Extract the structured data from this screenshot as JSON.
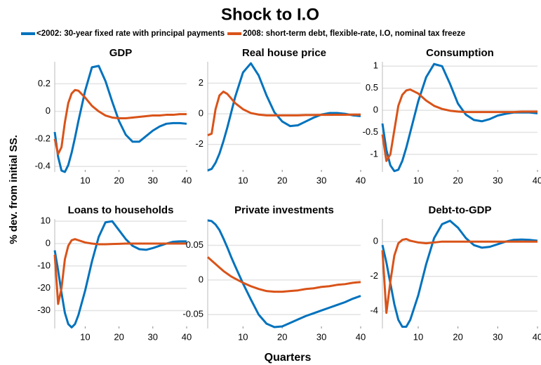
{
  "title": "Shock to I.O",
  "ylabel": "% dev. from initial SS.",
  "xlabel": "Quarters",
  "chart_data": [
    {
      "type": "line",
      "title": "GDP",
      "x": [
        1,
        2,
        3,
        4,
        5,
        6,
        7,
        8,
        10,
        12,
        14,
        16,
        18,
        20,
        22,
        24,
        26,
        28,
        30,
        32,
        34,
        36,
        38,
        40
      ],
      "xlim": [
        1,
        40
      ],
      "xticks": [
        10,
        20,
        30,
        40
      ],
      "ylim": [
        -0.44,
        0.36
      ],
      "yticks": [
        -0.4,
        -0.2,
        0,
        0.2
      ],
      "grid": true,
      "series": [
        {
          "name": "<2002: 30-year fixed rate with principal payments",
          "color": "#0072BD",
          "values": [
            -0.15,
            -0.33,
            -0.43,
            -0.44,
            -0.39,
            -0.3,
            -0.19,
            -0.07,
            0.15,
            0.32,
            0.33,
            0.22,
            0.07,
            -0.07,
            -0.17,
            -0.22,
            -0.22,
            -0.18,
            -0.14,
            -0.11,
            -0.09,
            -0.085,
            -0.085,
            -0.09
          ]
        },
        {
          "name": "2008: short-term debt, flexible-rate, I.O, nominal tax freeze",
          "color": "#D95319",
          "values": [
            -0.2,
            -0.31,
            -0.26,
            -0.08,
            0.06,
            0.13,
            0.155,
            0.15,
            0.1,
            0.04,
            0.0,
            -0.03,
            -0.045,
            -0.05,
            -0.05,
            -0.045,
            -0.04,
            -0.035,
            -0.03,
            -0.03,
            -0.025,
            -0.025,
            -0.02,
            -0.02
          ]
        }
      ]
    },
    {
      "type": "line",
      "title": "Real house price",
      "x": [
        1,
        2,
        3,
        4,
        5,
        6,
        7,
        8,
        10,
        12,
        14,
        16,
        18,
        20,
        22,
        24,
        26,
        28,
        30,
        32,
        34,
        36,
        38,
        40
      ],
      "xlim": [
        1,
        40
      ],
      "xticks": [
        10,
        20,
        30,
        40
      ],
      "ylim": [
        -3.8,
        3.4
      ],
      "yticks": [
        -2,
        0,
        2
      ],
      "grid": true,
      "series": [
        {
          "name": "<2002: 30-year fixed rate with principal payments",
          "color": "#0072BD",
          "values": [
            -3.7,
            -3.6,
            -3.2,
            -2.6,
            -1.8,
            -0.9,
            0.1,
            1.1,
            2.7,
            3.3,
            2.5,
            1.2,
            0.1,
            -0.5,
            -0.8,
            -0.75,
            -0.5,
            -0.25,
            -0.05,
            0.05,
            0.05,
            0.0,
            -0.1,
            -0.15
          ]
        },
        {
          "name": "2008: short-term debt, flexible-rate, I.O, nominal tax freeze",
          "color": "#D95319",
          "values": [
            -1.4,
            -1.3,
            0.3,
            1.2,
            1.45,
            1.3,
            1.0,
            0.7,
            0.3,
            0.05,
            -0.05,
            -0.1,
            -0.1,
            -0.1,
            -0.1,
            -0.1,
            -0.08,
            -0.08,
            -0.07,
            -0.07,
            -0.06,
            -0.06,
            -0.05,
            -0.05
          ]
        }
      ]
    },
    {
      "type": "line",
      "title": "Consumption",
      "x": [
        1,
        2,
        3,
        4,
        5,
        6,
        7,
        8,
        10,
        12,
        14,
        16,
        18,
        20,
        22,
        24,
        26,
        28,
        30,
        32,
        34,
        36,
        38,
        40
      ],
      "xlim": [
        1,
        40
      ],
      "xticks": [
        10,
        20,
        30,
        40
      ],
      "ylim": [
        -1.4,
        1.1
      ],
      "yticks": [
        -1,
        -0.5,
        0,
        0.5,
        1
      ],
      "grid": true,
      "series": [
        {
          "name": "<2002: 30-year fixed rate with principal payments",
          "color": "#0072BD",
          "values": [
            -0.3,
            -0.9,
            -1.25,
            -1.38,
            -1.35,
            -1.15,
            -0.85,
            -0.5,
            0.2,
            0.75,
            1.05,
            1.0,
            0.6,
            0.15,
            -0.1,
            -0.22,
            -0.25,
            -0.2,
            -0.12,
            -0.08,
            -0.05,
            -0.05,
            -0.05,
            -0.07
          ]
        },
        {
          "name": "2008: short-term debt, flexible-rate, I.O, nominal tax freeze",
          "color": "#D95319",
          "values": [
            -0.55,
            -1.15,
            -1.0,
            -0.45,
            0.1,
            0.35,
            0.45,
            0.47,
            0.38,
            0.22,
            0.1,
            0.03,
            -0.01,
            -0.03,
            -0.04,
            -0.04,
            -0.04,
            -0.04,
            -0.04,
            -0.04,
            -0.04,
            -0.03,
            -0.03,
            -0.03
          ]
        }
      ]
    },
    {
      "type": "line",
      "title": "Loans to households",
      "x": [
        1,
        2,
        3,
        4,
        5,
        6,
        7,
        8,
        10,
        12,
        14,
        16,
        18,
        20,
        22,
        24,
        26,
        28,
        30,
        32,
        34,
        36,
        38,
        40
      ],
      "xlim": [
        1,
        40
      ],
      "xticks": [
        10,
        20,
        30,
        40
      ],
      "ylim": [
        -38,
        11
      ],
      "yticks": [
        -30,
        -20,
        -10,
        0,
        10
      ],
      "grid": true,
      "series": [
        {
          "name": "<2002: 30-year fixed rate with principal payments",
          "color": "#0072BD",
          "values": [
            -3,
            -12,
            -22,
            -31,
            -36,
            -37.5,
            -36,
            -32,
            -21,
            -8,
            3,
            9.5,
            10,
            6,
            2,
            -1,
            -2.5,
            -2.8,
            -2,
            -1,
            0,
            0.8,
            1,
            1
          ]
        },
        {
          "name": "2008: short-term debt, flexible-rate, I.O, nominal tax freeze",
          "color": "#D95319",
          "values": [
            -5,
            -27,
            -20,
            -7,
            -1,
            1.5,
            2,
            1.5,
            0.5,
            0,
            -0.3,
            -0.3,
            -0.2,
            -0.1,
            0,
            0,
            0,
            0,
            0,
            0,
            0,
            0,
            0,
            0
          ]
        }
      ]
    },
    {
      "type": "line",
      "title": "Private investments",
      "x": [
        1,
        2,
        3,
        4,
        5,
        6,
        7,
        8,
        10,
        12,
        14,
        16,
        18,
        20,
        22,
        24,
        26,
        28,
        30,
        32,
        34,
        36,
        38,
        40
      ],
      "xlim": [
        1,
        40
      ],
      "xticks": [
        10,
        20,
        30,
        40
      ],
      "ylim": [
        -0.07,
        0.088
      ],
      "yticks": [
        -0.05,
        0,
        0.05
      ],
      "grid": true,
      "series": [
        {
          "name": "<2002: 30-year fixed rate with principal payments",
          "color": "#0072BD",
          "values": [
            0.086,
            0.085,
            0.08,
            0.072,
            0.06,
            0.047,
            0.033,
            0.02,
            -0.005,
            -0.028,
            -0.05,
            -0.063,
            -0.068,
            -0.067,
            -0.062,
            -0.057,
            -0.052,
            -0.048,
            -0.044,
            -0.04,
            -0.036,
            -0.032,
            -0.027,
            -0.023
          ]
        },
        {
          "name": "2008: short-term debt, flexible-rate, I.O, nominal tax freeze",
          "color": "#D95319",
          "values": [
            0.033,
            0.028,
            0.023,
            0.018,
            0.013,
            0.009,
            0.005,
            0.002,
            -0.004,
            -0.009,
            -0.013,
            -0.016,
            -0.017,
            -0.017,
            -0.016,
            -0.015,
            -0.013,
            -0.012,
            -0.01,
            -0.009,
            -0.007,
            -0.006,
            -0.004,
            -0.003
          ]
        }
      ]
    },
    {
      "type": "line",
      "title": "Debt-to-GDP",
      "x": [
        1,
        2,
        3,
        4,
        5,
        6,
        7,
        8,
        10,
        12,
        14,
        16,
        18,
        20,
        22,
        24,
        26,
        28,
        30,
        32,
        34,
        36,
        38,
        40
      ],
      "xlim": [
        1,
        40
      ],
      "xticks": [
        10,
        20,
        30,
        40
      ],
      "ylim": [
        -5,
        1.3
      ],
      "yticks": [
        -4,
        -2,
        0
      ],
      "grid": true,
      "series": [
        {
          "name": "<2002: 30-year fixed rate with principal payments",
          "color": "#0072BD",
          "values": [
            -0.2,
            -1.2,
            -2.4,
            -3.6,
            -4.5,
            -4.9,
            -4.9,
            -4.5,
            -3.1,
            -1.3,
            0.2,
            1.0,
            1.2,
            0.8,
            0.2,
            -0.2,
            -0.35,
            -0.3,
            -0.15,
            0,
            0.1,
            0.12,
            0.1,
            0.05
          ]
        },
        {
          "name": "2008: short-term debt, flexible-rate, I.O, nominal tax freeze",
          "color": "#D95319",
          "values": [
            -0.5,
            -4.1,
            -2.3,
            -0.8,
            -0.1,
            0.1,
            0.15,
            0.05,
            -0.05,
            -0.1,
            -0.05,
            0,
            0,
            0,
            0,
            0,
            0,
            0,
            0,
            0,
            0,
            0,
            0,
            0
          ]
        }
      ]
    }
  ]
}
